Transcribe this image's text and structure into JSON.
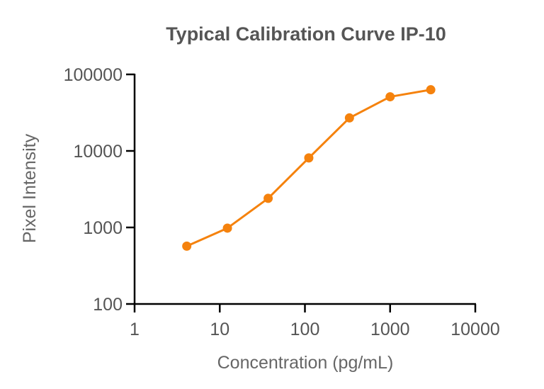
{
  "chart_data": {
    "type": "line",
    "title": "Typical Calibration Curve IP-10",
    "xlabel": "Concentration (pg/mL)",
    "ylabel": "Pixel Intensity",
    "xscale": "log",
    "yscale": "log",
    "xlim": [
      1,
      10000
    ],
    "ylim": [
      100,
      100000
    ],
    "xticks": [
      "1",
      "10",
      "100",
      "1000",
      "10000"
    ],
    "yticks": [
      "100",
      "1000",
      "10000",
      "100000"
    ],
    "grid": false,
    "legend": "none",
    "series": [
      {
        "color": "#F5820D",
        "x": [
          4.1,
          12.3,
          37,
          111,
          333,
          1000,
          3000
        ],
        "y": [
          570,
          980,
          2400,
          8100,
          27000,
          51000,
          63000
        ]
      }
    ]
  }
}
